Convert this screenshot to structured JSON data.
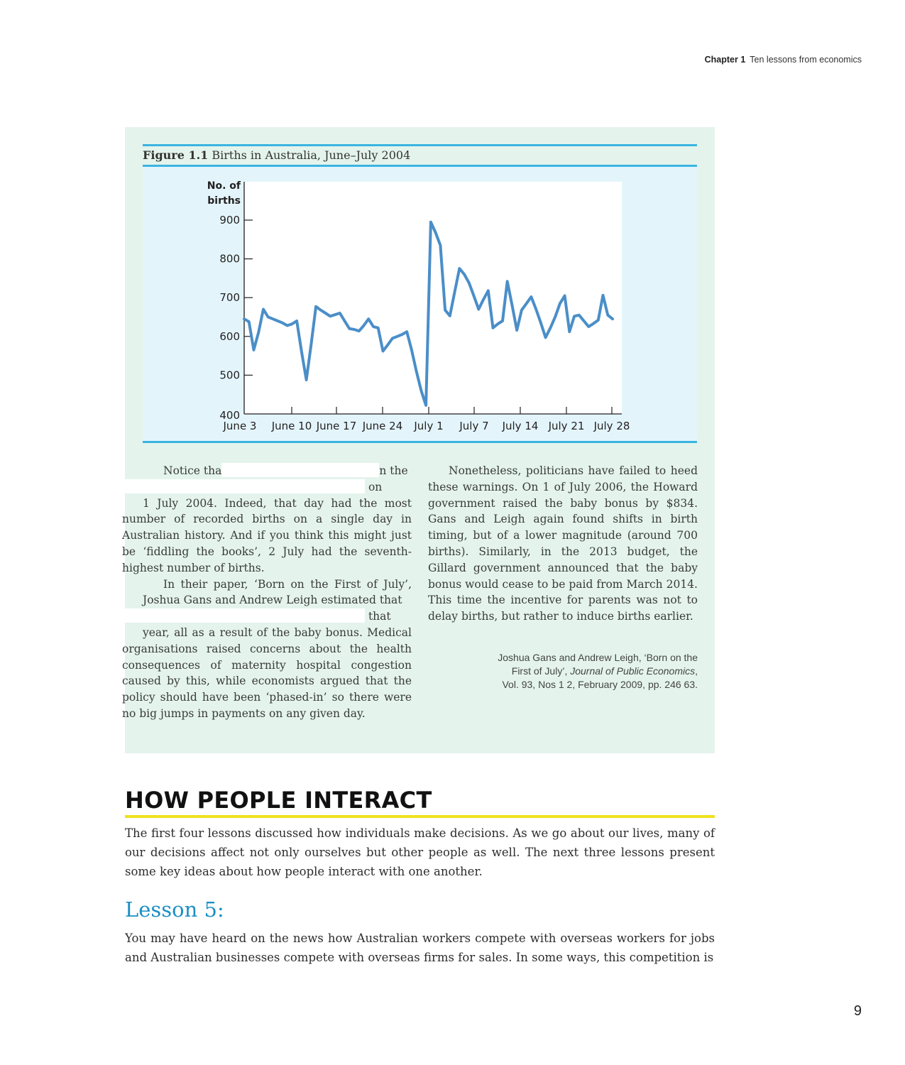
{
  "running_head": {
    "chapter": "Chapter 1",
    "title": "Ten lessons from economics"
  },
  "figure": {
    "label": "Figure 1.1",
    "caption": "Births in Australia, June–July 2004"
  },
  "chart_data": {
    "type": "line",
    "title": "",
    "xlabel": "",
    "ylabel": "No. of births",
    "ylim": [
      400,
      900
    ],
    "yticks": [
      "400",
      "500",
      "600",
      "700",
      "800",
      "900"
    ],
    "xtick_labels": [
      "June 3",
      "June 10",
      "June 17",
      "June 24",
      "July 1",
      "July 7",
      "July 14",
      "July 21",
      "July 28"
    ],
    "grid": false,
    "color": "#4a8ec8",
    "series": [
      {
        "values": [
          645,
          638,
          565,
          610,
          670,
          650,
          645,
          640,
          635,
          628,
          632,
          640,
          560,
          488,
          580,
          677,
          668,
          660,
          652,
          656,
          660,
          640,
          620,
          618,
          614,
          628,
          645,
          625,
          622,
          562,
          578,
          595,
          600,
          605,
          612,
          565,
          510,
          460,
          422,
          895,
          868,
          835,
          668,
          653,
          715,
          775,
          760,
          738,
          705,
          670,
          695,
          718,
          622,
          632,
          640,
          742,
          680,
          616,
          668,
          685,
          702,
          670,
          635,
          597,
          622,
          650,
          685,
          705,
          612,
          652,
          655,
          640,
          625,
          633,
          642,
          706,
          655,
          645
        ]
      }
    ]
  },
  "left_column": {
    "p1_a": "Notice tha",
    "p1_b": "n the",
    "p1_c": "on",
    "p1_d": "1 July 2004. Indeed, that day had the most number of recorded births on a single day in Australian history. And if you think this might just be ‘fiddling the books’, 2 July had the seventh-highest number of births.",
    "p2_a": "In their paper, ‘Born on the First of July’, Joshua Gans and Andrew Leigh estimated that",
    "p2_b": "that",
    "p2_c": "year, all as a result of the baby bonus. Medical organisations raised concerns about the health consequences of maternity hospital congestion caused by this, while economists argued that the policy should have been ‘phased-in’ so there were no big jumps in payments on any given day."
  },
  "right_column": {
    "p1": "Nonetheless, politicians have failed to heed these warnings. On 1 of July 2006, the Howard government raised the baby bonus by $834. Gans and Leigh again found shifts in birth timing, but of a lower magnitude (around 700 births). Similarly, in the 2013 budget, the Gillard government announced that the baby bonus would cease to be paid from March 2014. This time the incentive for parents was not to delay births, but rather to induce births earlier.",
    "ref_line1": "Joshua Gans and Andrew Leigh, ‘Born on the",
    "ref_line2_a": "First of July’, ",
    "ref_line2_journal": "Journal of Public Economics",
    "ref_line2_b": ",",
    "ref_line3": "Vol. 93, Nos 1  2, February 2009, pp. 246  63."
  },
  "section": {
    "heading": "HOW PEOPLE INTERACT",
    "para1": "The first four lessons discussed how individuals make decisions. As we go about our lives, many of our decisions affect not only ourselves but other people as well. The next three lessons present some key ideas about how people interact with one another.",
    "lesson_title": "Lesson 5:",
    "para2": "You may have heard on the news how Australian workers compete with overseas workers for jobs and Australian businesses compete with overseas firms for sales. In some ways, this competition is"
  },
  "page_number": "9"
}
